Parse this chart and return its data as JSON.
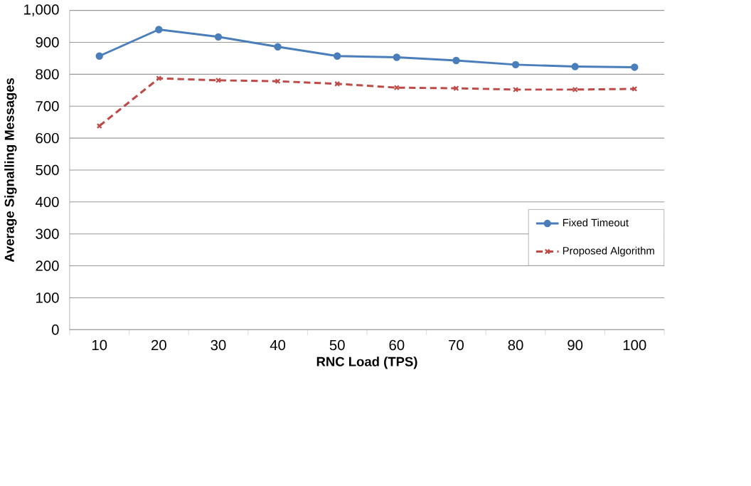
{
  "chart_data": {
    "type": "line",
    "xlabel": "RNC Load (TPS)",
    "ylabel": "Average Signalling Messages",
    "categories": [
      "10",
      "20",
      "30",
      "40",
      "50",
      "60",
      "70",
      "80",
      "90",
      "100"
    ],
    "series": [
      {
        "name": "Fixed Timeout",
        "color": "#4a7ebb",
        "marker": "circle",
        "line_style": "solid",
        "values": [
          857,
          940,
          917,
          886,
          857,
          853,
          843,
          830,
          824,
          822
        ]
      },
      {
        "name": "Proposed Algorithm",
        "color": "#be4b48",
        "marker": "cross",
        "line_style": "dashed",
        "values": [
          638,
          787,
          781,
          778,
          770,
          758,
          756,
          752,
          752,
          754
        ]
      }
    ],
    "ylim": [
      0,
      1000
    ],
    "yticks": [
      0,
      100,
      200,
      300,
      400,
      500,
      600,
      700,
      800,
      900,
      {
        "value": 1000,
        "label": "1,000"
      }
    ],
    "grid": "y",
    "legend": "right"
  }
}
